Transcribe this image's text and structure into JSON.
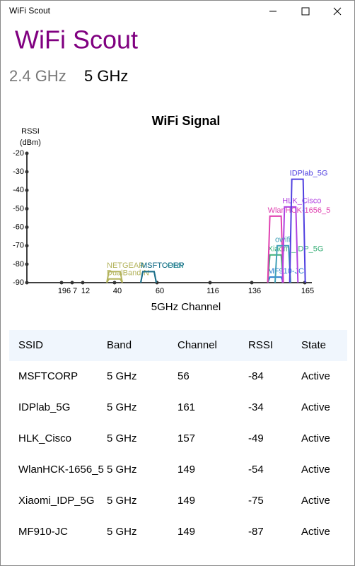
{
  "window": {
    "title": "WiFi Scout"
  },
  "app": {
    "title": "WiFi Scout",
    "tabs": [
      "2.4 GHz",
      "5 GHz"
    ]
  },
  "chart_data": {
    "type": "spectrum",
    "title": "WiFi Signal",
    "ylabel": [
      "RSSI",
      "(dBm)"
    ],
    "xlabel": "5GHz Channel",
    "ylim": [
      -90,
      -20
    ],
    "yticks": [
      -20,
      -30,
      -40,
      -50,
      -60,
      -70,
      -80,
      -90
    ],
    "xticks": [
      196,
      7,
      12,
      40,
      60,
      116,
      136,
      165
    ],
    "series": [
      {
        "name": "NETGEAR",
        "color": "#b3b35c",
        "channel": 40,
        "rssi": -84
      },
      {
        "name": "DualBand-N",
        "color": "#b3b35c",
        "channel": 40,
        "rssi": -88
      },
      {
        "name": "MSFTOPEN",
        "color": "#3aa0a0",
        "channel": 56,
        "rssi": -84
      },
      {
        "name": "MSFTCORP",
        "color": "#1f6f8b",
        "channel": 56,
        "rssi": -84
      },
      {
        "name": "MF910-JC",
        "color": "#2f80d0",
        "channel": 149,
        "rssi": -87
      },
      {
        "name": "Xiaomi_IDP_5G",
        "color": "#3cb07a",
        "channel": 149,
        "rssi": -75
      },
      {
        "name": "WlanHCK-1656_5",
        "color": "#e040b0",
        "channel": 149,
        "rssi": -54
      },
      {
        "name": "owifi",
        "color": "#40a0b8",
        "channel": 153,
        "rssi": -70
      },
      {
        "name": "HLK_Cisco",
        "color": "#b040e0",
        "channel": 157,
        "rssi": -49
      },
      {
        "name": "IDPlab_5G",
        "color": "#5040e0",
        "channel": 161,
        "rssi": -34
      }
    ]
  },
  "table": {
    "header": [
      "SSID",
      "Band",
      "Channel",
      "RSSI",
      "State"
    ],
    "rows": [
      [
        "MSFTCORP",
        "5 GHz",
        "56",
        "-84",
        "Active"
      ],
      [
        "IDPlab_5G",
        "5 GHz",
        "161",
        "-34",
        "Active"
      ],
      [
        "HLK_Cisco",
        "5 GHz",
        "157",
        "-49",
        "Active"
      ],
      [
        "WlanHCK-1656_5",
        "5 GHz",
        "149",
        "-54",
        "Active"
      ],
      [
        "Xiaomi_IDP_5G",
        "5 GHz",
        "149",
        "-75",
        "Active"
      ],
      [
        "MF910-JC",
        "5 GHz",
        "149",
        "-87",
        "Active"
      ]
    ]
  }
}
